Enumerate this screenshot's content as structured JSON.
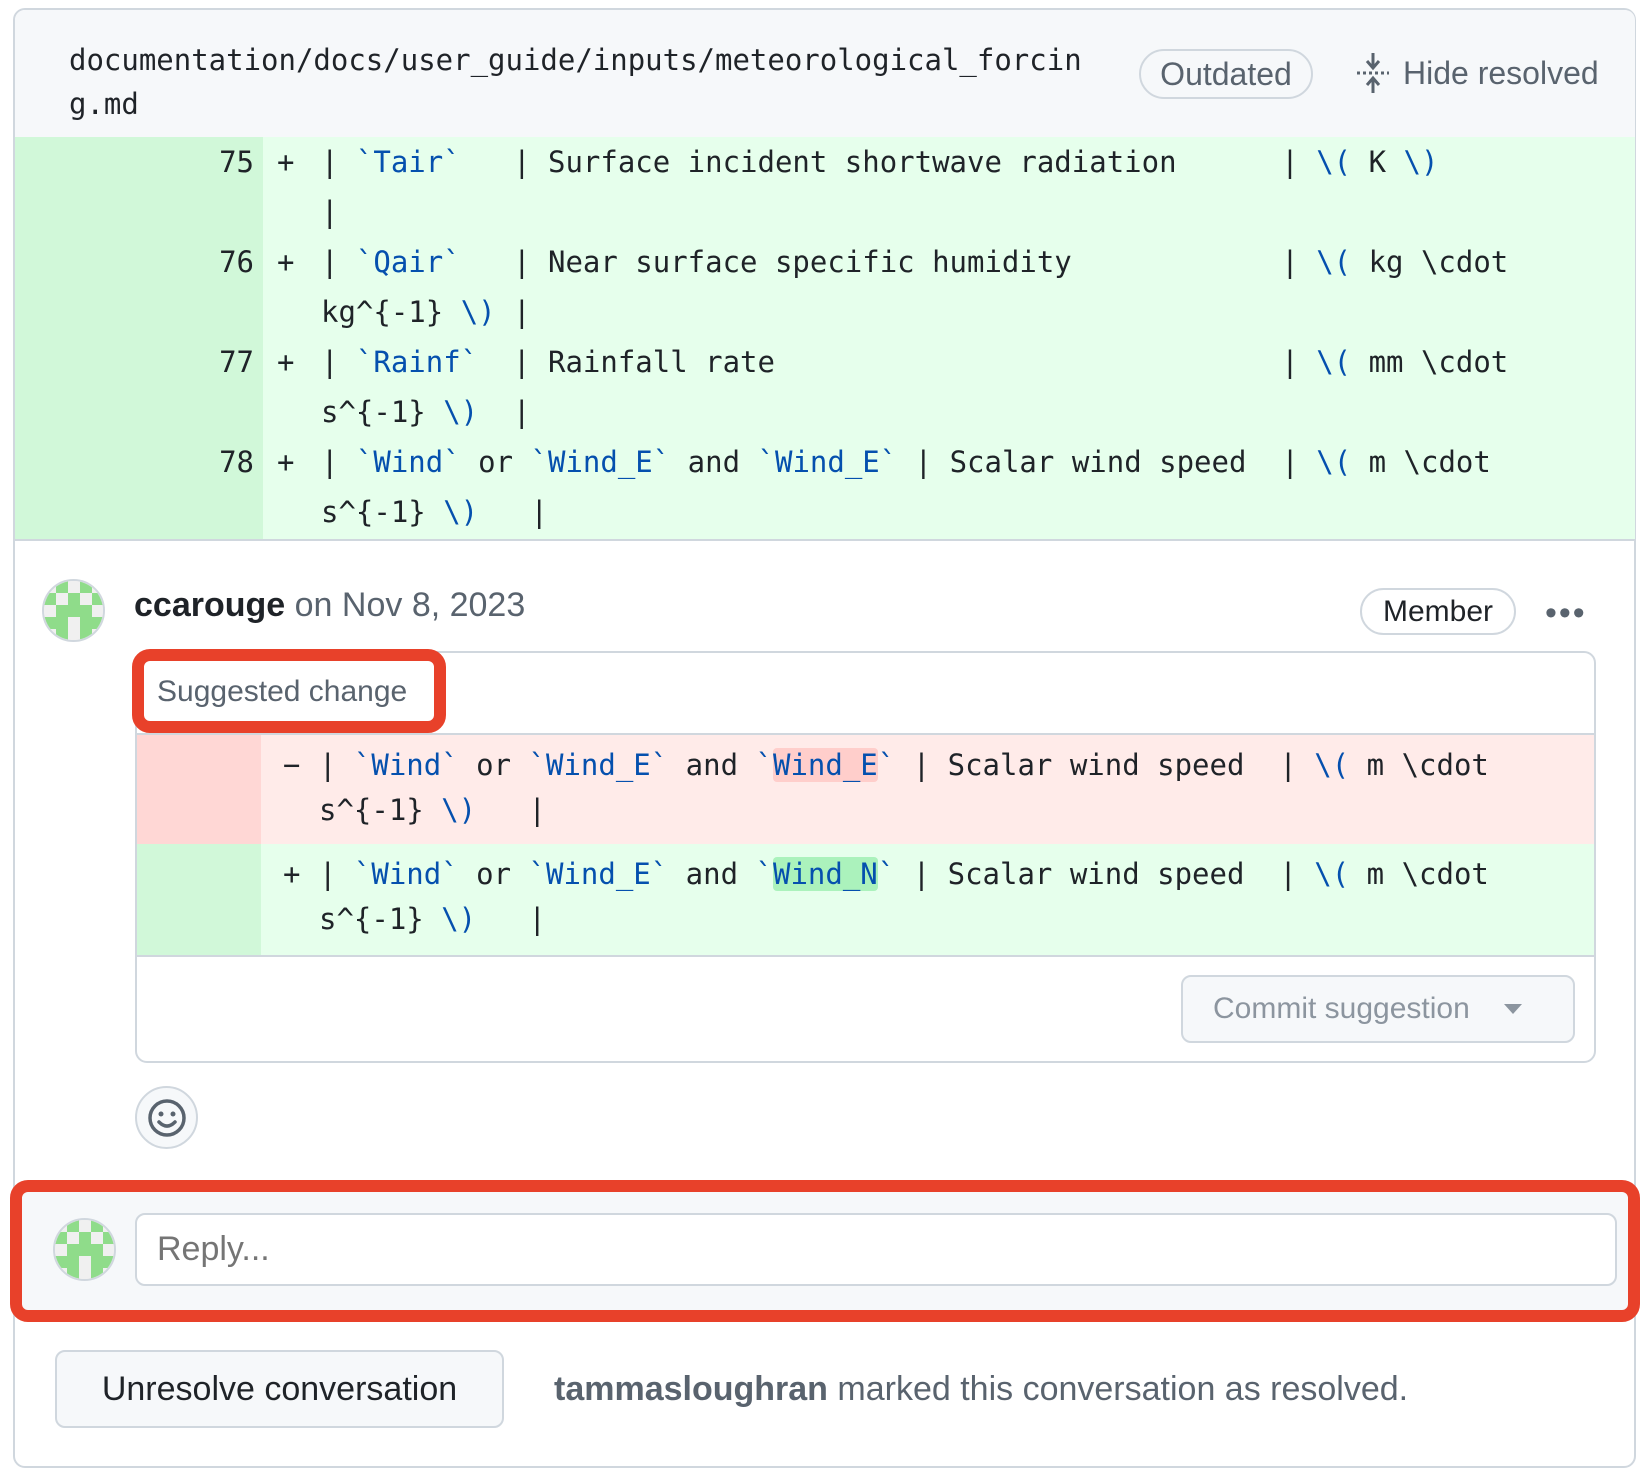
{
  "file": {
    "path_line1": "documentation/docs/user_guide/inputs/meteorological_forcin",
    "path_line2": "g.md",
    "outdated_label": "Outdated",
    "hide_resolved_label": "Hide resolved",
    "hide_resolved_icon": "fold-icon"
  },
  "diff": {
    "lines": [
      {
        "num": "75",
        "sign": "+",
        "rows": [
          [
            [
              "| ",
              ""
            ],
            [
              "`Tair`",
              "s"
            ],
            [
              "   | Surface incident shortwave radiation      | ",
              ""
            ],
            [
              "\\(",
              "s"
            ],
            [
              " K ",
              ""
            ],
            [
              "\\)",
              "s"
            ]
          ],
          [
            [
              "|",
              ""
            ]
          ]
        ]
      },
      {
        "num": "76",
        "sign": "+",
        "rows": [
          [
            [
              "| ",
              ""
            ],
            [
              "`Qair`",
              "s"
            ],
            [
              "   | Near surface specific humidity            | ",
              ""
            ],
            [
              "\\(",
              "s"
            ],
            [
              " kg \\cdot",
              ""
            ]
          ],
          [
            [
              "kg^{-1} ",
              ""
            ],
            [
              "\\)",
              "s"
            ],
            [
              " |",
              ""
            ]
          ]
        ]
      },
      {
        "num": "77",
        "sign": "+",
        "rows": [
          [
            [
              "| ",
              ""
            ],
            [
              "`Rainf`",
              "s"
            ],
            [
              "  | Rainfall rate                             | ",
              ""
            ],
            [
              "\\(",
              "s"
            ],
            [
              " mm \\cdot",
              ""
            ]
          ],
          [
            [
              "s^{-1} ",
              ""
            ],
            [
              "\\)",
              "s"
            ],
            [
              "  |",
              ""
            ]
          ]
        ]
      },
      {
        "num": "78",
        "sign": "+",
        "rows": [
          [
            [
              "| ",
              ""
            ],
            [
              "`Wind`",
              "s"
            ],
            [
              " or ",
              ""
            ],
            [
              "`Wind_E`",
              "s"
            ],
            [
              " and ",
              ""
            ],
            [
              "`Wind_E`",
              "s"
            ],
            [
              " | Scalar wind speed  | ",
              ""
            ],
            [
              "\\(",
              "s"
            ],
            [
              " m \\cdot",
              ""
            ]
          ],
          [
            [
              "s^{-1} ",
              ""
            ],
            [
              "\\)",
              "s"
            ],
            [
              "   |",
              ""
            ]
          ]
        ]
      }
    ]
  },
  "comment": {
    "author": "ccarouge",
    "date": "on Nov 8, 2023",
    "role_badge": "Member",
    "more_icon": "kebab-horizontal-icon",
    "suggestion": {
      "header": "Suggested change",
      "deleted": {
        "sign": "−",
        "rows": [
          [
            [
              "| ",
              ""
            ],
            [
              "`Wind`",
              "s"
            ],
            [
              " or ",
              ""
            ],
            [
              "`Wind_E`",
              "s"
            ],
            [
              " and ",
              ""
            ],
            [
              "`",
              "s"
            ],
            [
              "Wind_E",
              "sdel"
            ],
            [
              "`",
              "s"
            ],
            [
              " | Scalar wind speed  | ",
              ""
            ],
            [
              "\\(",
              "s"
            ],
            [
              " m \\cdot",
              ""
            ]
          ],
          [
            [
              "s^{-1} ",
              ""
            ],
            [
              "\\)",
              "s"
            ],
            [
              "   |",
              ""
            ]
          ]
        ]
      },
      "added": {
        "sign": "+",
        "rows": [
          [
            [
              "| ",
              ""
            ],
            [
              "`Wind`",
              "s"
            ],
            [
              " or ",
              ""
            ],
            [
              "`Wind_E`",
              "s"
            ],
            [
              " and ",
              ""
            ],
            [
              "`",
              "s"
            ],
            [
              "Wind_N",
              "sadd"
            ],
            [
              "`",
              "s"
            ],
            [
              " | Scalar wind speed  | ",
              ""
            ],
            [
              "\\(",
              "s"
            ],
            [
              " m \\cdot",
              ""
            ]
          ],
          [
            [
              "s^{-1} ",
              ""
            ],
            [
              "\\)",
              "s"
            ],
            [
              "   |",
              ""
            ]
          ]
        ]
      },
      "commit_label": "Commit suggestion"
    },
    "reaction_icon": "smiley-icon"
  },
  "reply": {
    "placeholder": "Reply..."
  },
  "resolution": {
    "unresolve_label": "Unresolve conversation",
    "resolver": "tammasloughran",
    "message": " marked this conversation as resolved."
  },
  "colors": {
    "highlight_red": "#e8412a",
    "added_bg": "#e6ffec",
    "deleted_bg": "#ffebe9",
    "token_blue": "#0550ae"
  }
}
